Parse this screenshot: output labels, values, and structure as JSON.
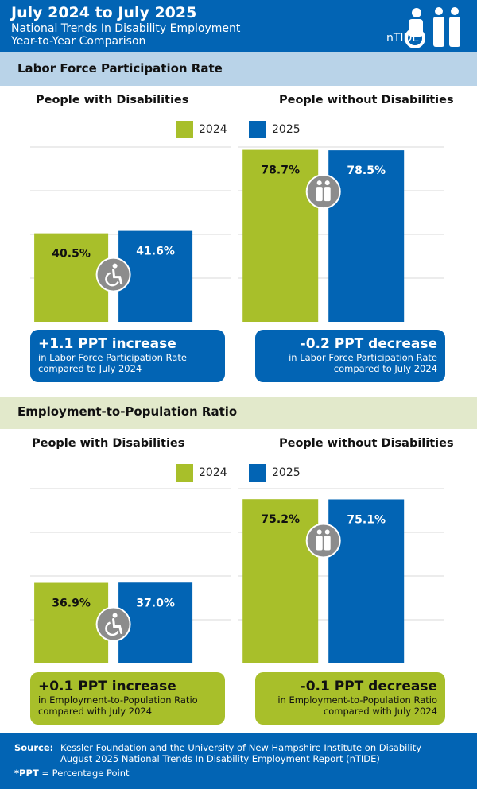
{
  "header": {
    "title": "July 2024 to July 2025",
    "subtitle1": "National Trends In Disability Employment",
    "subtitle2": "Year-to-Year Comparison",
    "logo_text": "nTIDE"
  },
  "colors": {
    "blue": "#0264b4",
    "green": "#a8bf2a"
  },
  "legend": {
    "label_2024": "2024",
    "label_2025": "2025"
  },
  "sections": [
    {
      "title": "Labor Force Participation Rate",
      "with_title": "People with Disabilities",
      "without_title": "People without Disabilities",
      "with_box": {
        "headline": "+1.1 PPT  increase",
        "line1": "in Labor Force Participation Rate",
        "line2": "compared to July 2024"
      },
      "without_box": {
        "headline": "-0.2 PPT  decrease",
        "line1": "in Labor Force Participation Rate",
        "line2": "compared to July 2024"
      }
    },
    {
      "title": "Employment-to-Population Ratio",
      "with_title": "People with Disabilities",
      "without_title": "People without Disabilities",
      "with_box": {
        "headline": "+0.1 PPT  increase",
        "line1": "in Employment-to-Population Ratio",
        "line2": "compared with July 2024"
      },
      "without_box": {
        "headline": "-0.1 PPT  decrease",
        "line1": "in Employment-to-Population Ratio",
        "line2": "compared with July 2024"
      }
    }
  ],
  "chart_data": [
    {
      "type": "bar",
      "title": "Labor Force Participation Rate — People with Disabilities",
      "categories": [
        "2024",
        "2025"
      ],
      "values": [
        40.5,
        41.6
      ],
      "labels": [
        "40.5%",
        "41.6%"
      ],
      "ylim": [
        0,
        100
      ],
      "grid": true
    },
    {
      "type": "bar",
      "title": "Labor Force Participation Rate — People without Disabilities",
      "categories": [
        "2024",
        "2025"
      ],
      "values": [
        78.7,
        78.5
      ],
      "labels": [
        "78.7%",
        "78.5%"
      ],
      "ylim": [
        0,
        100
      ],
      "grid": true
    },
    {
      "type": "bar",
      "title": "Employment-to-Population Ratio — People with Disabilities",
      "categories": [
        "2024",
        "2025"
      ],
      "values": [
        36.9,
        37.0
      ],
      "labels": [
        "36.9%",
        "37.0%"
      ],
      "ylim": [
        0,
        100
      ],
      "grid": true
    },
    {
      "type": "bar",
      "title": "Employment-to-Population Ratio — People without Disabilities",
      "categories": [
        "2024",
        "2025"
      ],
      "values": [
        75.2,
        75.1
      ],
      "labels": [
        "75.2%",
        "75.1%"
      ],
      "ylim": [
        0,
        100
      ],
      "grid": true
    }
  ],
  "footer": {
    "source_label": "Source:",
    "source_line1": "Kessler Foundation and the University of New Hampshire Institute on Disability",
    "source_line2": "August 2025 National Trends In Disability Employment Report (nTIDE)",
    "ppt_label": "*PPT",
    "ppt_text": " = Percentage Point"
  }
}
